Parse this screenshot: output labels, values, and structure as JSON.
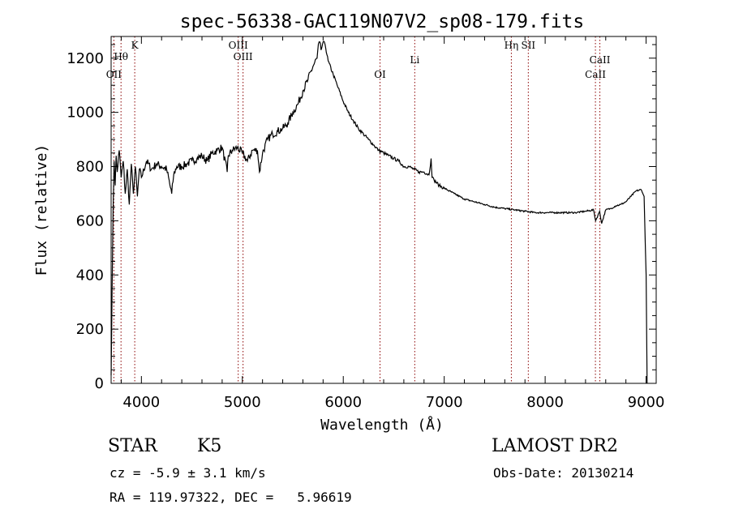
{
  "chart_data": {
    "type": "line",
    "title": "spec-56338-GAC119N07V2_sp08-179.fits",
    "xlabel": "Wavelength (Å)",
    "ylabel": "Flux (relative)",
    "xlim": [
      3700,
      9100
    ],
    "ylim": [
      0,
      1280
    ],
    "x_ticks": [
      4000,
      5000,
      6000,
      7000,
      8000,
      9000
    ],
    "x_tick_labels": [
      "4000",
      "5000",
      "6000",
      "7000",
      "8000",
      "9000"
    ],
    "y_ticks": [
      0,
      200,
      400,
      600,
      800,
      1000,
      1200
    ],
    "y_tick_labels": [
      "0",
      "200",
      "400",
      "600",
      "800",
      "1000",
      "1200"
    ],
    "grid": false,
    "series": [
      {
        "color": "#000000",
        "x": [
          3700,
          3710,
          3720,
          3730,
          3740,
          3750,
          3760,
          3780,
          3800,
          3820,
          3840,
          3860,
          3880,
          3900,
          3920,
          3940,
          3960,
          3980,
          4000,
          4050,
          4100,
          4150,
          4200,
          4250,
          4300,
          4320,
          4350,
          4400,
          4450,
          4500,
          4550,
          4600,
          4650,
          4700,
          4750,
          4800,
          4850,
          4860,
          4900,
          4950,
          5000,
          5050,
          5100,
          5150,
          5170,
          5200,
          5250,
          5300,
          5350,
          5400,
          5450,
          5500,
          5550,
          5600,
          5650,
          5700,
          5740,
          5760,
          5780,
          5800,
          5820,
          5850,
          5900,
          5950,
          6000,
          6050,
          6100,
          6150,
          6200,
          6250,
          6300,
          6350,
          6400,
          6450,
          6500,
          6550,
          6600,
          6650,
          6700,
          6750,
          6800,
          6850,
          6870,
          6880,
          6900,
          6950,
          7000,
          7100,
          7200,
          7300,
          7400,
          7500,
          7600,
          7700,
          7800,
          7900,
          8000,
          8100,
          8200,
          8300,
          8400,
          8480,
          8500,
          8540,
          8560,
          8600,
          8650,
          8700,
          8750,
          8800,
          8850,
          8900,
          8950,
          8980,
          9000,
          9010
        ],
        "y": [
          30,
          350,
          650,
          820,
          730,
          840,
          780,
          860,
          760,
          820,
          700,
          790,
          660,
          810,
          700,
          800,
          690,
          790,
          760,
          820,
          790,
          810,
          800,
          790,
          700,
          770,
          800,
          800,
          810,
          820,
          830,
          840,
          820,
          850,
          860,
          870,
          780,
          840,
          860,
          870,
          850,
          820,
          860,
          860,
          780,
          850,
          900,
          920,
          930,
          940,
          960,
          1000,
          1030,
          1080,
          1120,
          1170,
          1200,
          1260,
          1230,
          1260,
          1250,
          1190,
          1140,
          1090,
          1040,
          1000,
          970,
          940,
          920,
          900,
          880,
          860,
          850,
          840,
          830,
          820,
          800,
          800,
          790,
          780,
          780,
          770,
          830,
          760,
          750,
          730,
          720,
          700,
          680,
          670,
          660,
          650,
          645,
          640,
          635,
          630,
          630,
          630,
          630,
          630,
          635,
          640,
          600,
          635,
          590,
          640,
          645,
          655,
          660,
          670,
          690,
          710,
          715,
          690,
          400,
          0
        ]
      }
    ],
    "lines": [
      {
        "label": "Hθ",
        "x": 3798
      },
      {
        "label": "OII",
        "x": 3727
      },
      {
        "label": "K",
        "x": 3934
      },
      {
        "label": "OIII",
        "x": 5007
      },
      {
        "label": "OIII",
        "x": 4959
      },
      {
        "label": "OI",
        "x": 6364
      },
      {
        "label": "Li",
        "x": 6708
      },
      {
        "label": "Hη",
        "x": 7665
      },
      {
        "label": "SII",
        "x": 7833
      },
      {
        "label": "CaII",
        "x": 8542
      },
      {
        "label": "CaII",
        "x": 8498
      }
    ],
    "line_color": "#8b0000"
  },
  "footer": {
    "object_class": "STAR",
    "subclass": "K5",
    "survey": "LAMOST DR2",
    "redshift": "cz = -5.9 ± 3.1 km/s",
    "obs_date": "Obs-Date: 20130214",
    "coords": "RA = 119.97322, DEC =   5.96619"
  }
}
